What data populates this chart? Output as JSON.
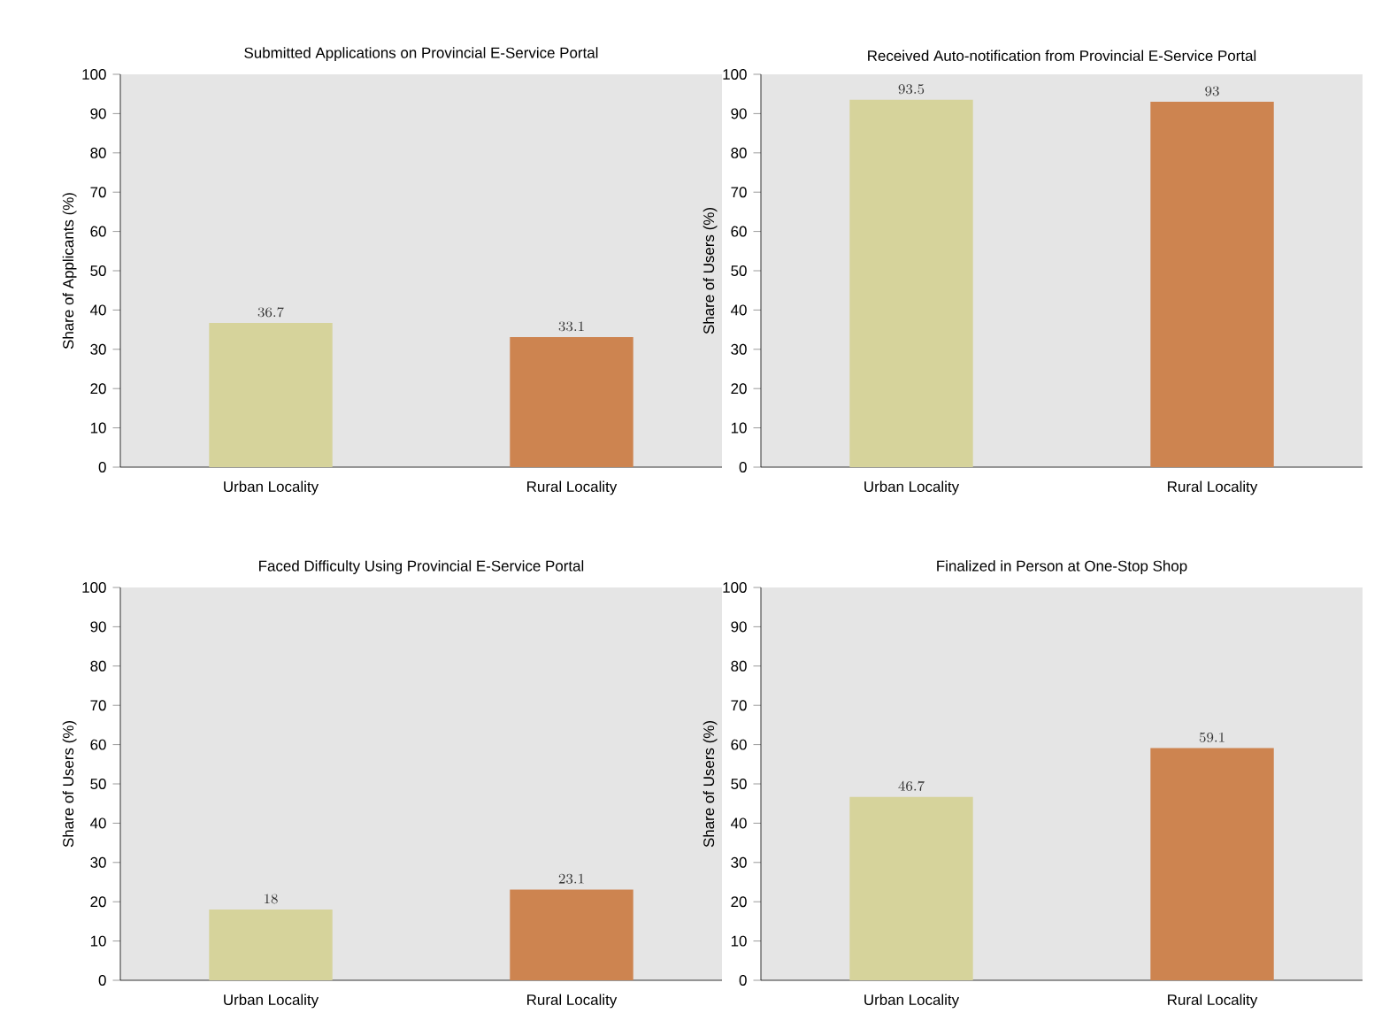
{
  "chart_data": [
    {
      "type": "bar",
      "title": "Submitted Applications on Provincial E-Service Portal",
      "ylabel": "Share of Applicants (%)",
      "categories": [
        "Urban Locality",
        "Rural Locality"
      ],
      "values": [
        36.7,
        33.1
      ],
      "colors": [
        "#d6d39b",
        "#cd8450"
      ],
      "ylim": [
        0,
        100
      ],
      "yticks": [
        0,
        10,
        20,
        30,
        40,
        50,
        60,
        70,
        80,
        90,
        100
      ],
      "data_labels": true
    },
    {
      "type": "bar",
      "title": "Received Auto-notification from Provincial E-Service Portal",
      "ylabel": "Share of Users (%)",
      "categories": [
        "Urban Locality",
        "Rural Locality"
      ],
      "values": [
        93.5,
        93
      ],
      "colors": [
        "#d6d39b",
        "#cd8450"
      ],
      "ylim": [
        0,
        100
      ],
      "yticks": [
        0,
        10,
        20,
        30,
        40,
        50,
        60,
        70,
        80,
        90,
        100
      ],
      "data_labels": true
    },
    {
      "type": "bar",
      "title": "Faced Difficulty Using Provincial E-Service Portal",
      "ylabel": "Share of Users (%)",
      "categories": [
        "Urban Locality",
        "Rural Locality"
      ],
      "values": [
        18,
        23.1
      ],
      "colors": [
        "#d6d39b",
        "#cd8450"
      ],
      "ylim": [
        0,
        100
      ],
      "yticks": [
        0,
        10,
        20,
        30,
        40,
        50,
        60,
        70,
        80,
        90,
        100
      ],
      "data_labels": true
    },
    {
      "type": "bar",
      "title": "Finalized in Person at One-Stop Shop",
      "ylabel": "Share of Users (%)",
      "categories": [
        "Urban Locality",
        "Rural Locality"
      ],
      "values": [
        46.7,
        59.1
      ],
      "colors": [
        "#d6d39b",
        "#cd8450"
      ],
      "ylim": [
        0,
        100
      ],
      "yticks": [
        0,
        10,
        20,
        30,
        40,
        50,
        60,
        70,
        80,
        90,
        100
      ],
      "data_labels": true
    }
  ]
}
